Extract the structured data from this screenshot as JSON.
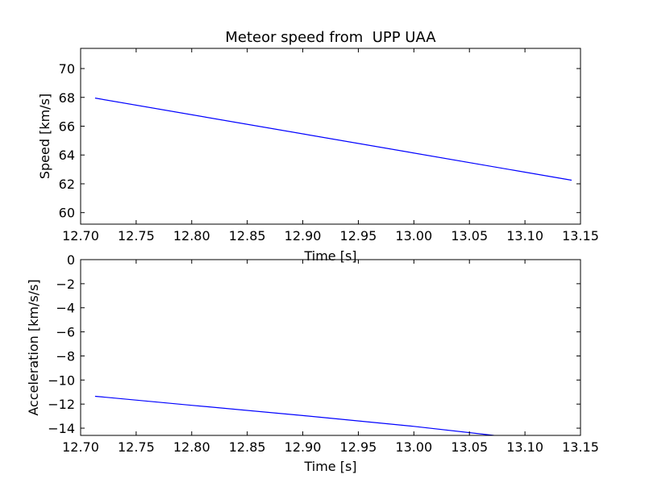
{
  "chart_data": [
    {
      "type": "line",
      "title": "Meteor speed from  UPP UAA",
      "xlabel": "Time [s]",
      "ylabel": "Speed [km/s]",
      "xlim": [
        12.7,
        13.15
      ],
      "ylim": [
        59.2,
        71.4
      ],
      "xticks": [
        "12.70",
        "12.75",
        "12.80",
        "12.85",
        "12.90",
        "12.95",
        "13.00",
        "13.05",
        "13.10",
        "13.15"
      ],
      "xtick_values": [
        12.7,
        12.75,
        12.8,
        12.85,
        12.9,
        12.95,
        13.0,
        13.05,
        13.1,
        13.15
      ],
      "yticks": [
        "60",
        "62",
        "64",
        "66",
        "68",
        "70"
      ],
      "ytick_values": [
        60,
        62,
        64,
        66,
        68,
        70
      ],
      "grid": false,
      "series": [
        {
          "color": "#0000ff",
          "x": [
            12.713,
            13.142
          ],
          "y": [
            67.95,
            62.25
          ]
        }
      ]
    },
    {
      "type": "line",
      "title": "",
      "xlabel": "Time [s]",
      "ylabel": "Acceleration [km/s/s]",
      "xlim": [
        12.7,
        13.15
      ],
      "ylim": [
        -14.6,
        0
      ],
      "xticks": [
        "12.70",
        "12.75",
        "12.80",
        "12.85",
        "12.90",
        "12.95",
        "13.00",
        "13.05",
        "13.10",
        "13.15"
      ],
      "xtick_values": [
        12.7,
        12.75,
        12.8,
        12.85,
        12.9,
        12.95,
        13.0,
        13.05,
        13.1,
        13.15
      ],
      "yticks": [
        "0",
        "−2",
        "−4",
        "−6",
        "−8",
        "−10",
        "−12",
        "−14"
      ],
      "ytick_values": [
        0,
        -2,
        -4,
        -6,
        -8,
        -10,
        -12,
        -14
      ],
      "grid": false,
      "series": [
        {
          "color": "#0000ff",
          "x": [
            12.713,
            12.8,
            12.9,
            13.0,
            13.072
          ],
          "y": [
            -11.35,
            -12.1,
            -12.95,
            -13.85,
            -14.6
          ]
        }
      ]
    }
  ]
}
